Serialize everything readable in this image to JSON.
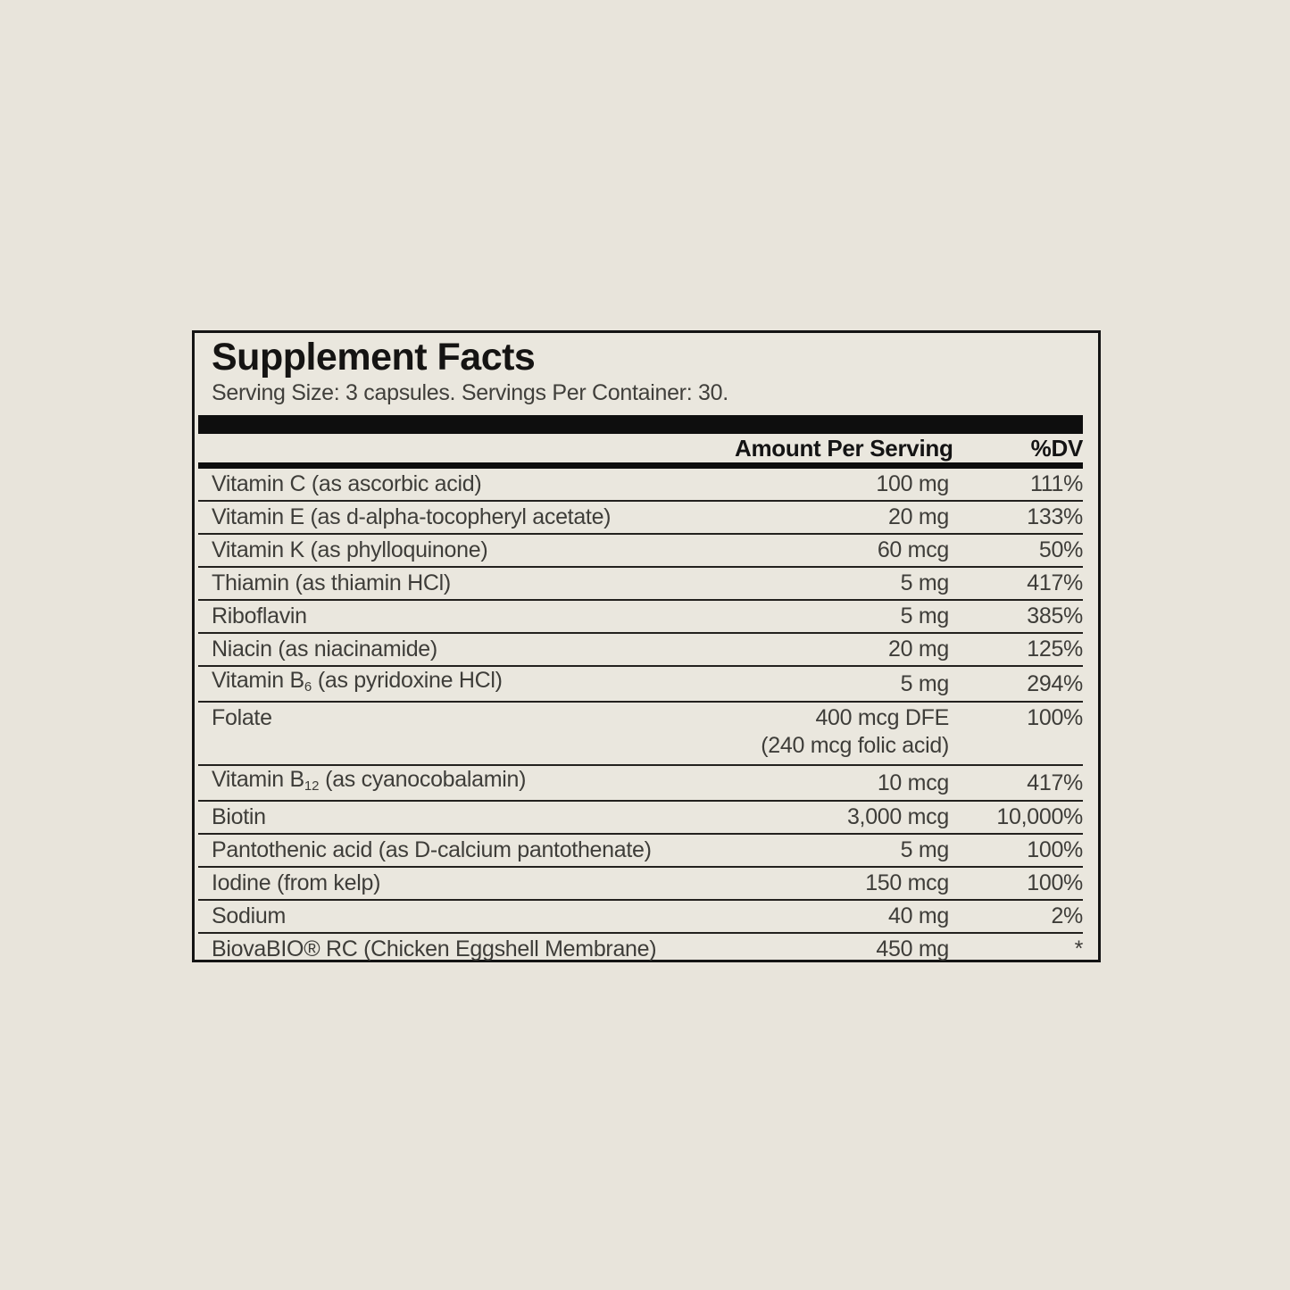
{
  "label": {
    "title": "Supplement Facts",
    "serving_line": "Serving Size: 3 capsules. Servings Per Container: 30.",
    "columns": {
      "amount": "Amount Per Serving",
      "dv": "%DV"
    },
    "rows": [
      {
        "pre": "Vitamin C (as ascorbic acid)",
        "sub": "",
        "post": "",
        "amount": "100 mg",
        "amount2": "",
        "dv": "111%"
      },
      {
        "pre": "Vitamin E (as d-alpha-tocopheryl acetate)",
        "sub": "",
        "post": "",
        "amount": "20 mg",
        "amount2": "",
        "dv": "133%"
      },
      {
        "pre": "Vitamin K (as phylloquinone)",
        "sub": "",
        "post": "",
        "amount": "60 mcg",
        "amount2": "",
        "dv": "50%"
      },
      {
        "pre": "Thiamin (as thiamin HCl)",
        "sub": "",
        "post": "",
        "amount": "5 mg",
        "amount2": "",
        "dv": "417%"
      },
      {
        "pre": "Riboflavin",
        "sub": "",
        "post": "",
        "amount": "5 mg",
        "amount2": "",
        "dv": "385%"
      },
      {
        "pre": "Niacin (as niacinamide)",
        "sub": "",
        "post": "",
        "amount": "20 mg",
        "amount2": "",
        "dv": "125%"
      },
      {
        "pre": "Vitamin B",
        "sub": "6",
        "post": " (as pyridoxine HCl)",
        "amount": "5 mg",
        "amount2": "",
        "dv": "294%"
      },
      {
        "pre": "Folate",
        "sub": "",
        "post": "",
        "amount": "400 mcg DFE",
        "amount2": "(240 mcg folic acid)",
        "dv": "100%"
      },
      {
        "pre": "Vitamin B",
        "sub": "12",
        "post": " (as cyanocobalamin)",
        "amount": "10 mcg",
        "amount2": "",
        "dv": "417%"
      },
      {
        "pre": "Biotin",
        "sub": "",
        "post": "",
        "amount": "3,000 mcg",
        "amount2": "",
        "dv": "10,000%"
      },
      {
        "pre": "Pantothenic acid (as D-calcium pantothenate)",
        "sub": "",
        "post": "",
        "amount": "5 mg",
        "amount2": "",
        "dv": "100%"
      },
      {
        "pre": "Iodine (from kelp)",
        "sub": "",
        "post": "",
        "amount": "150 mcg",
        "amount2": "",
        "dv": "100%"
      },
      {
        "pre": "Sodium",
        "sub": "",
        "post": "",
        "amount": "40 mg",
        "amount2": "",
        "dv": "2%"
      },
      {
        "pre": "BiovaBIO® RC (Chicken Eggshell Membrane)",
        "sub": "",
        "post": "",
        "amount": "450 mg",
        "amount2": "",
        "dv": "*"
      }
    ],
    "colors": {
      "page_background": "#e8e4db",
      "label_background": "#eae7de",
      "border": "#141414",
      "bar": "#0e0e0e",
      "text": "#3e3d39",
      "heading": "#151413"
    }
  }
}
